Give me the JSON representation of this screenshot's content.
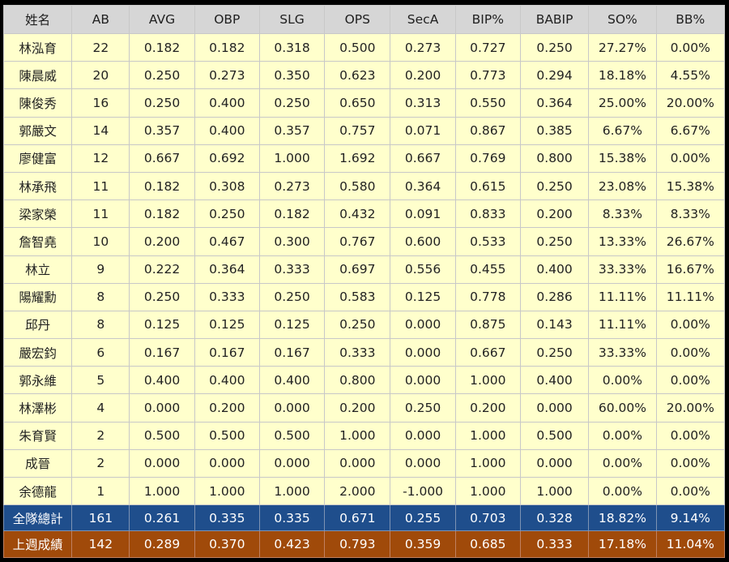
{
  "columns": [
    "姓名",
    "AB",
    "AVG",
    "OBP",
    "SLG",
    "OPS",
    "SecA",
    "BIP%",
    "BABIP",
    "SO%",
    "BB%"
  ],
  "players": [
    [
      "林泓育",
      "22",
      "0.182",
      "0.182",
      "0.318",
      "0.500",
      "0.273",
      "0.727",
      "0.250",
      "27.27%",
      "0.00%"
    ],
    [
      "陳晨威",
      "20",
      "0.250",
      "0.273",
      "0.350",
      "0.623",
      "0.200",
      "0.773",
      "0.294",
      "18.18%",
      "4.55%"
    ],
    [
      "陳俊秀",
      "16",
      "0.250",
      "0.400",
      "0.250",
      "0.650",
      "0.313",
      "0.550",
      "0.364",
      "25.00%",
      "20.00%"
    ],
    [
      "郭嚴文",
      "14",
      "0.357",
      "0.400",
      "0.357",
      "0.757",
      "0.071",
      "0.867",
      "0.385",
      "6.67%",
      "6.67%"
    ],
    [
      "廖健富",
      "12",
      "0.667",
      "0.692",
      "1.000",
      "1.692",
      "0.667",
      "0.769",
      "0.800",
      "15.38%",
      "0.00%"
    ],
    [
      "林承飛",
      "11",
      "0.182",
      "0.308",
      "0.273",
      "0.580",
      "0.364",
      "0.615",
      "0.250",
      "23.08%",
      "15.38%"
    ],
    [
      "梁家榮",
      "11",
      "0.182",
      "0.250",
      "0.182",
      "0.432",
      "0.091",
      "0.833",
      "0.200",
      "8.33%",
      "8.33%"
    ],
    [
      "詹智堯",
      "10",
      "0.200",
      "0.467",
      "0.300",
      "0.767",
      "0.600",
      "0.533",
      "0.250",
      "13.33%",
      "26.67%"
    ],
    [
      "林立",
      "9",
      "0.222",
      "0.364",
      "0.333",
      "0.697",
      "0.556",
      "0.455",
      "0.400",
      "33.33%",
      "16.67%"
    ],
    [
      "陽耀勳",
      "8",
      "0.250",
      "0.333",
      "0.250",
      "0.583",
      "0.125",
      "0.778",
      "0.286",
      "11.11%",
      "11.11%"
    ],
    [
      "邱丹",
      "8",
      "0.125",
      "0.125",
      "0.125",
      "0.250",
      "0.000",
      "0.875",
      "0.143",
      "11.11%",
      "0.00%"
    ],
    [
      "嚴宏鈞",
      "6",
      "0.167",
      "0.167",
      "0.167",
      "0.333",
      "0.000",
      "0.667",
      "0.250",
      "33.33%",
      "0.00%"
    ],
    [
      "郭永維",
      "5",
      "0.400",
      "0.400",
      "0.400",
      "0.800",
      "0.000",
      "1.000",
      "0.400",
      "0.00%",
      "0.00%"
    ],
    [
      "林澤彬",
      "4",
      "0.000",
      "0.200",
      "0.000",
      "0.200",
      "0.250",
      "0.200",
      "0.000",
      "60.00%",
      "20.00%"
    ],
    [
      "朱育賢",
      "2",
      "0.500",
      "0.500",
      "0.500",
      "1.000",
      "0.000",
      "1.000",
      "0.500",
      "0.00%",
      "0.00%"
    ],
    [
      "成晉",
      "2",
      "0.000",
      "0.000",
      "0.000",
      "0.000",
      "0.000",
      "1.000",
      "0.000",
      "0.00%",
      "0.00%"
    ],
    [
      "余德龍",
      "1",
      "1.000",
      "1.000",
      "1.000",
      "2.000",
      "-1.000",
      "1.000",
      "1.000",
      "0.00%",
      "0.00%"
    ]
  ],
  "team_total": [
    "全隊總計",
    "161",
    "0.261",
    "0.335",
    "0.335",
    "0.671",
    "0.255",
    "0.703",
    "0.328",
    "18.82%",
    "9.14%"
  ],
  "last_week": [
    "上週成績",
    "142",
    "0.289",
    "0.370",
    "0.423",
    "0.793",
    "0.359",
    "0.685",
    "0.333",
    "17.18%",
    "11.04%"
  ],
  "colors": {
    "header_bg": "#d6d6d6",
    "player_row_bg": "#ffffcc",
    "team_total_bg": "#1f4e8c",
    "last_week_bg": "#a04a0a",
    "page_bg": "#000000"
  }
}
